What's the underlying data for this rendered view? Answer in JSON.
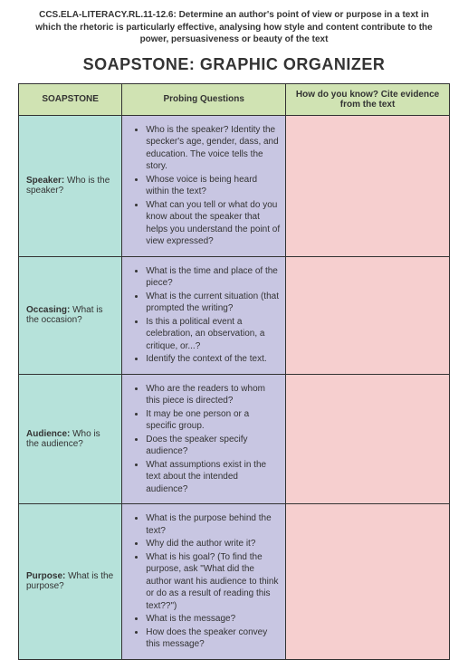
{
  "header": {
    "standard": "CCS.ELA-LITERACY.RL.11-12.6: Determine an author's point of view or purpose in a text in which the rhetoric is particularly effective, analysing how style and content contribute to the power, persuasiveness or beauty of the text",
    "title": "SOAPSTONE: GRAPHIC ORGANIZER"
  },
  "columns": {
    "col1": "SOAPSTONE",
    "col2": "Probing Questions",
    "col3": "How do you know? Cite evidence from the text"
  },
  "rows": [
    {
      "label": "Speaker:",
      "prompt": "Who is the speaker?",
      "questions": [
        "Who is the speaker? Identity the specker's age, gender, dass, and education. The voice tells the story.",
        "Whose voice is being heard within the text?",
        "What can you tell or what do you know about the speaker that helps you understand the point of view expressed?"
      ]
    },
    {
      "label": "Occasing:",
      "prompt": "What is the occasion?",
      "questions": [
        "What is the time and place of the piece?",
        "What is the current situation (that prompted the writing?",
        "Is this a political event a celebration, an observation, a critique, or...?",
        "Identify the context of the text."
      ]
    },
    {
      "label": "Audience:",
      "prompt": "Who is the audience?",
      "questions": [
        "Who are the readers to whom this piece is directed?",
        "It may be one person or a specific group.",
        "Does the speaker specify audience?",
        "What assumptions exist in the text about the intended audience?"
      ]
    },
    {
      "label": "Purpose:",
      "prompt": "What is the purpose?",
      "questions": [
        "What is the purpose behind the text?",
        "Why did the author write it?",
        "What is his goal? (To find the purpose, ask \"What did the author want his audience to think or do as a result of reading this text??\")",
        "What is the message?",
        "How does the speaker convey this message?"
      ]
    }
  ],
  "style": {
    "header_bg": "#d0e3b3",
    "col_a_bg": "#b6e2da",
    "col_b_bg": "#c8c6e2",
    "col_c_bg": "#f6cfcf",
    "border_color": "#333333",
    "text_color": "#333333"
  }
}
